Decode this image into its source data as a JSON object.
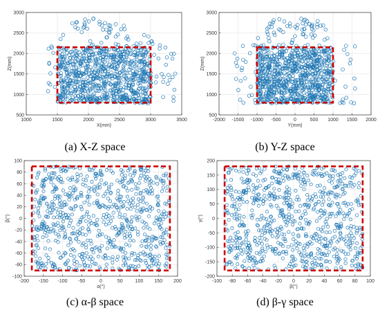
{
  "chart_data": [
    {
      "type": "scatter",
      "panel": "xz",
      "caption": "(a) X-Z space",
      "xlabel": "X(mm)",
      "ylabel": "Z(mm)",
      "xlim": [
        1000,
        3500
      ],
      "ylim": [
        500,
        3000
      ],
      "xticks": [
        1000,
        1500,
        2000,
        2500,
        3000,
        3500
      ],
      "yticks": [
        500,
        1000,
        1500,
        2000,
        2500,
        3000
      ],
      "grid": true,
      "marker_color": "#1f77b4",
      "box_color": "#cc0000",
      "box": {
        "x": [
          1500,
          3000
        ],
        "y": [
          800,
          2150
        ]
      },
      "spread": {
        "x": [
          1330,
          3400
        ],
        "y": [
          780,
          2850
        ]
      },
      "n_points": 950,
      "seed": 11
    },
    {
      "type": "scatter",
      "panel": "yz",
      "caption": "(b) Y-Z space",
      "xlabel": "Y(mm)",
      "ylabel": "Z(mm)",
      "xlim": [
        -2000,
        2000
      ],
      "ylim": [
        500,
        3000
      ],
      "xticks": [
        -2000,
        -1500,
        -1000,
        -500,
        0,
        500,
        1000,
        1500,
        2000
      ],
      "yticks": [
        500,
        1000,
        1500,
        2000,
        2500,
        3000
      ],
      "grid": true,
      "marker_color": "#1f77b4",
      "box_color": "#cc0000",
      "box": {
        "x": [
          -1000,
          1000
        ],
        "y": [
          800,
          2150
        ]
      },
      "spread": {
        "x": [
          -1600,
          1600
        ],
        "y": [
          780,
          2850
        ]
      },
      "n_points": 950,
      "seed": 23
    },
    {
      "type": "scatter",
      "panel": "ab",
      "caption": "(c) α-β space",
      "xlabel": "α(°)",
      "ylabel": "β(°)",
      "xlim": [
        -200,
        200
      ],
      "ylim": [
        -100,
        100
      ],
      "xticks": [
        -200,
        -150,
        -100,
        -50,
        0,
        50,
        100,
        150,
        200
      ],
      "yticks": [
        -100,
        -80,
        -60,
        -40,
        -20,
        0,
        20,
        40,
        60,
        80,
        100
      ],
      "grid": true,
      "marker_color": "#1f77b4",
      "box_color": "#cc0000",
      "box": {
        "x": [
          -180,
          180
        ],
        "y": [
          -90,
          90
        ]
      },
      "spread": {
        "x": [
          -180,
          180
        ],
        "y": [
          -90,
          90
        ]
      },
      "n_points": 800,
      "seed": 37
    },
    {
      "type": "scatter",
      "panel": "bg",
      "caption": "(d) β-γ space",
      "xlabel": "β(°)",
      "ylabel": "γ(°)",
      "xlim": [
        -100,
        100
      ],
      "ylim": [
        -200,
        200
      ],
      "xticks": [
        -100,
        -80,
        -60,
        -40,
        -20,
        0,
        20,
        40,
        60,
        80,
        100
      ],
      "yticks": [
        -200,
        -150,
        -100,
        -50,
        0,
        50,
        100,
        150,
        200
      ],
      "grid": true,
      "marker_color": "#1f77b4",
      "box_color": "#cc0000",
      "box": {
        "x": [
          -90,
          90
        ],
        "y": [
          -180,
          180
        ]
      },
      "spread": {
        "x": [
          -90,
          90
        ],
        "y": [
          -180,
          180
        ]
      },
      "n_points": 800,
      "seed": 53
    }
  ]
}
